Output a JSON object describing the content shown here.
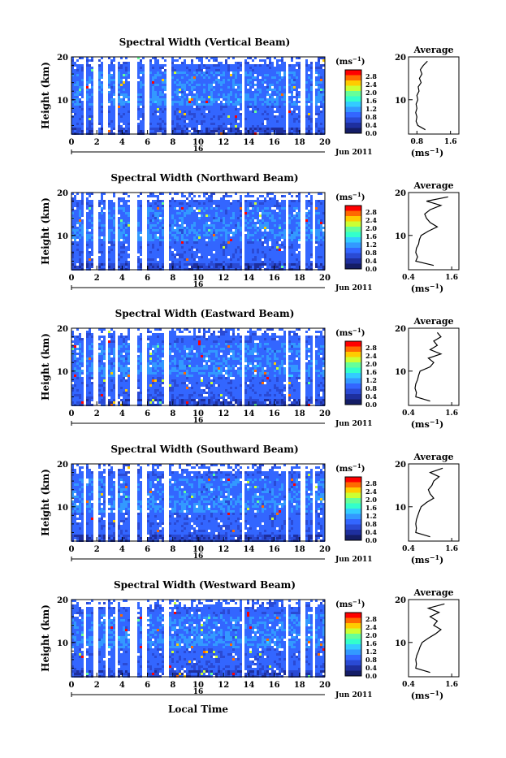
{
  "footer": {
    "xlabel": "Local Time"
  },
  "colorbar": {
    "unit_base": "(ms",
    "unit_exp": "−1",
    "unit_close": ")",
    "ticks": [
      "2.8",
      "2.4",
      "2.0",
      "1.6",
      "1.2",
      "0.8",
      "0.4",
      "0.0"
    ],
    "colors": [
      "#ff0000",
      "#ff6a00",
      "#ffcc00",
      "#ccff33",
      "#66ff99",
      "#33ffcc",
      "#33ccff",
      "#3399ff",
      "#3366ff",
      "#2a4ad4",
      "#1e2f9e",
      "#141d66"
    ]
  },
  "chart_data": [
    {
      "type": "heatmap",
      "title": "Spectral Width (Vertical Beam)",
      "ylabel": "Height (km)",
      "ylim": [
        2,
        20
      ],
      "yticks": [
        "20",
        "10"
      ],
      "xticks": [
        "0",
        "2",
        "4",
        "6",
        "8",
        "10",
        "12",
        "14",
        "16",
        "18",
        "20"
      ],
      "xlim": [
        0,
        20
      ],
      "date_day": "16",
      "date_month": "Jun 2011",
      "clim": [
        0.0,
        3.0
      ],
      "gaps": [
        [
          0.8,
          1.0
        ],
        [
          1.7,
          2.0
        ],
        [
          2.5,
          2.8
        ],
        [
          3.3,
          3.6
        ],
        [
          4.6,
          5.0
        ],
        [
          5.6,
          6.0
        ],
        [
          7.4,
          7.7
        ],
        [
          13.3,
          13.5
        ],
        [
          16.8,
          17.0
        ],
        [
          18.0,
          18.3
        ],
        [
          19.0,
          19.2
        ]
      ],
      "average": {
        "title": "Average",
        "xlabel": "(ms",
        "xlabel_exp": "−1",
        "xlabel_close": ")",
        "xticks": [
          "0.8",
          "1.6"
        ],
        "xlim": [
          0.6,
          1.8
        ],
        "yticks": [
          "20",
          "10"
        ],
        "height_km": [
          3,
          4,
          5,
          6,
          7,
          8,
          9,
          10,
          11,
          12,
          13,
          14,
          15,
          16,
          17,
          18,
          19
        ],
        "width": [
          1.0,
          0.82,
          0.78,
          0.8,
          0.77,
          0.8,
          0.78,
          0.82,
          0.8,
          0.85,
          0.83,
          0.9,
          0.86,
          0.92,
          0.88,
          0.95,
          1.05
        ]
      }
    },
    {
      "type": "heatmap",
      "title": "Spectral Width (Northward Beam)",
      "ylabel": "Height (km)",
      "ylim": [
        2,
        20
      ],
      "yticks": [
        "20",
        "10"
      ],
      "xticks": [
        "0",
        "2",
        "4",
        "6",
        "8",
        "10",
        "12",
        "14",
        "16",
        "18",
        "20"
      ],
      "xlim": [
        0,
        20
      ],
      "date_day": "16",
      "date_month": "Jun 2011",
      "clim": [
        0.0,
        3.0
      ],
      "gaps": [
        [
          0.9,
          1.1
        ],
        [
          1.7,
          2.0
        ],
        [
          2.6,
          2.8
        ],
        [
          3.3,
          3.6
        ],
        [
          4.6,
          5.0
        ],
        [
          5.5,
          5.9
        ],
        [
          7.3,
          7.6
        ],
        [
          13.3,
          13.5
        ],
        [
          16.8,
          17.0
        ],
        [
          18.0,
          18.3
        ],
        [
          19.0,
          19.2
        ]
      ],
      "average": {
        "title": "Average",
        "xlabel": "(ms",
        "xlabel_exp": "−1",
        "xlabel_close": ")",
        "xticks": [
          "0.4",
          "1.6"
        ],
        "xlim": [
          0.4,
          1.8
        ],
        "yticks": [
          "20",
          "10"
        ],
        "height_km": [
          3,
          4,
          5,
          6,
          7,
          8,
          9,
          10,
          11,
          12,
          13,
          14,
          15,
          16,
          17,
          18,
          19
        ],
        "width": [
          1.1,
          0.6,
          0.65,
          0.6,
          0.62,
          0.68,
          0.7,
          0.75,
          0.95,
          1.2,
          1.0,
          0.9,
          0.85,
          1.0,
          1.3,
          0.9,
          1.5
        ]
      }
    },
    {
      "type": "heatmap",
      "title": "Spectral Width (Eastward Beam)",
      "ylabel": "Height (km)",
      "ylim": [
        2,
        20
      ],
      "yticks": [
        "20",
        "10"
      ],
      "xticks": [
        "0",
        "2",
        "4",
        "6",
        "8",
        "10",
        "12",
        "14",
        "16",
        "18",
        "20"
      ],
      "xlim": [
        0,
        20
      ],
      "date_day": "16",
      "date_month": "Jun 2011",
      "clim": [
        0.0,
        3.0
      ],
      "gaps": [
        [
          0.9,
          1.1
        ],
        [
          1.7,
          2.0
        ],
        [
          2.6,
          2.8
        ],
        [
          3.3,
          3.6
        ],
        [
          4.6,
          5.0
        ],
        [
          5.5,
          5.9
        ],
        [
          7.3,
          7.6
        ],
        [
          13.3,
          13.5
        ],
        [
          16.8,
          17.0
        ],
        [
          18.0,
          18.3
        ],
        [
          19.0,
          19.2
        ]
      ],
      "average": {
        "title": "Average",
        "xlabel": "(ms",
        "xlabel_exp": "−1",
        "xlabel_close": ")",
        "xticks": [
          "0.4",
          "1.6"
        ],
        "xlim": [
          0.4,
          1.8
        ],
        "yticks": [
          "20",
          "10"
        ],
        "height_km": [
          3,
          4,
          5,
          6,
          7,
          8,
          9,
          10,
          11,
          12,
          13,
          14,
          15,
          16,
          17,
          18,
          19
        ],
        "width": [
          1.0,
          0.6,
          0.62,
          0.58,
          0.6,
          0.65,
          0.68,
          0.72,
          1.0,
          1.1,
          0.95,
          1.3,
          1.0,
          1.2,
          1.1,
          1.3,
          1.2
        ]
      }
    },
    {
      "type": "heatmap",
      "title": "Spectral Width (Southward Beam)",
      "ylabel": "Height (km)",
      "ylim": [
        2,
        20
      ],
      "yticks": [
        "20",
        "10"
      ],
      "xticks": [
        "0",
        "2",
        "4",
        "6",
        "8",
        "10",
        "12",
        "14",
        "16",
        "18",
        "20"
      ],
      "xlim": [
        0,
        20
      ],
      "date_day": "16",
      "date_month": "Jun 2011",
      "clim": [
        0.0,
        3.0
      ],
      "gaps": [
        [
          0.9,
          1.1
        ],
        [
          1.7,
          2.0
        ],
        [
          2.6,
          2.8
        ],
        [
          3.3,
          3.6
        ],
        [
          4.6,
          5.0
        ],
        [
          5.5,
          5.9
        ],
        [
          7.3,
          7.6
        ],
        [
          13.3,
          13.5
        ],
        [
          16.8,
          17.0
        ],
        [
          18.0,
          18.3
        ],
        [
          19.0,
          19.2
        ]
      ],
      "average": {
        "title": "Average",
        "xlabel": "(ms",
        "xlabel_exp": "−1",
        "xlabel_close": ")",
        "xticks": [
          "0.4",
          "1.6"
        ],
        "xlim": [
          0.4,
          1.8
        ],
        "yticks": [
          "20",
          "10"
        ],
        "height_km": [
          3,
          4,
          5,
          6,
          7,
          8,
          9,
          10,
          11,
          12,
          13,
          14,
          15,
          16,
          17,
          18,
          19
        ],
        "width": [
          1.0,
          0.6,
          0.62,
          0.6,
          0.62,
          0.66,
          0.7,
          0.75,
          0.9,
          1.1,
          1.0,
          0.95,
          1.05,
          1.1,
          1.25,
          1.0,
          1.35
        ]
      }
    },
    {
      "type": "heatmap",
      "title": "Spectral Width (Westward Beam)",
      "ylabel": "Height (km)",
      "ylim": [
        2,
        20
      ],
      "yticks": [
        "20",
        "10"
      ],
      "xticks": [
        "0",
        "2",
        "4",
        "6",
        "8",
        "10",
        "12",
        "14",
        "16",
        "18",
        "20"
      ],
      "xlim": [
        0,
        20
      ],
      "date_day": "16",
      "date_month": "Jun 2011",
      "clim": [
        0.0,
        3.0
      ],
      "gaps": [
        [
          0.9,
          1.1
        ],
        [
          1.7,
          2.0
        ],
        [
          2.6,
          2.8
        ],
        [
          3.3,
          3.6
        ],
        [
          4.6,
          5.0
        ],
        [
          5.5,
          5.9
        ],
        [
          7.3,
          7.6
        ],
        [
          13.3,
          13.5
        ],
        [
          16.8,
          17.0
        ],
        [
          18.0,
          18.3
        ],
        [
          19.0,
          19.2
        ]
      ],
      "average": {
        "title": "Average",
        "xlabel": "(ms",
        "xlabel_exp": "−1",
        "xlabel_close": ")",
        "xticks": [
          "0.4",
          "1.6"
        ],
        "xlim": [
          0.4,
          1.8
        ],
        "yticks": [
          "20",
          "10"
        ],
        "height_km": [
          3,
          4,
          5,
          6,
          7,
          8,
          9,
          10,
          11,
          12,
          13,
          14,
          15,
          16,
          17,
          18,
          19
        ],
        "width": [
          1.0,
          0.6,
          0.62,
          0.6,
          0.63,
          0.68,
          0.72,
          0.78,
          0.95,
          1.15,
          1.3,
          1.1,
          1.2,
          1.0,
          1.25,
          0.95,
          1.4
        ]
      }
    }
  ]
}
